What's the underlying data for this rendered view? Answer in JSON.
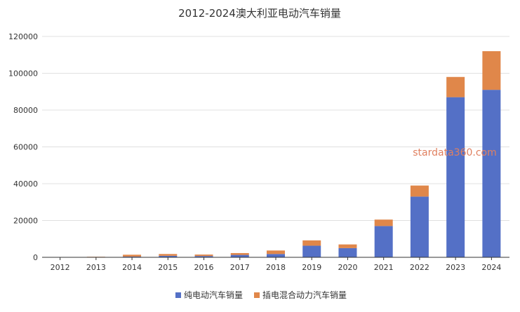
{
  "chart_data": {
    "type": "bar",
    "stacked": true,
    "title": "2012-2024澳大利亚电动汽车销量",
    "xlabel": "",
    "ylabel": "",
    "categories": [
      "2012",
      "2013",
      "2014",
      "2015",
      "2016",
      "2017",
      "2018",
      "2019",
      "2020",
      "2021",
      "2022",
      "2023",
      "2024"
    ],
    "series": [
      {
        "name": "纯电动汽车销量",
        "color": "#5470c6",
        "values": [
          100,
          200,
          400,
          800,
          700,
          1300,
          1800,
          6300,
          5000,
          17000,
          33000,
          87000,
          91000
        ]
      },
      {
        "name": "插电混合动力汽车销量",
        "color": "#e0874a",
        "values": [
          50,
          100,
          1000,
          1000,
          800,
          1000,
          1900,
          2900,
          2000,
          3500,
          6000,
          11000,
          21000
        ]
      }
    ],
    "ylim": [
      0,
      120000
    ],
    "yticks": [
      "0",
      "20000",
      "40000",
      "60000",
      "80000",
      "100000",
      "120000"
    ],
    "grid": true,
    "legend_position": "bottom-center"
  },
  "watermark": "stardata360.com"
}
